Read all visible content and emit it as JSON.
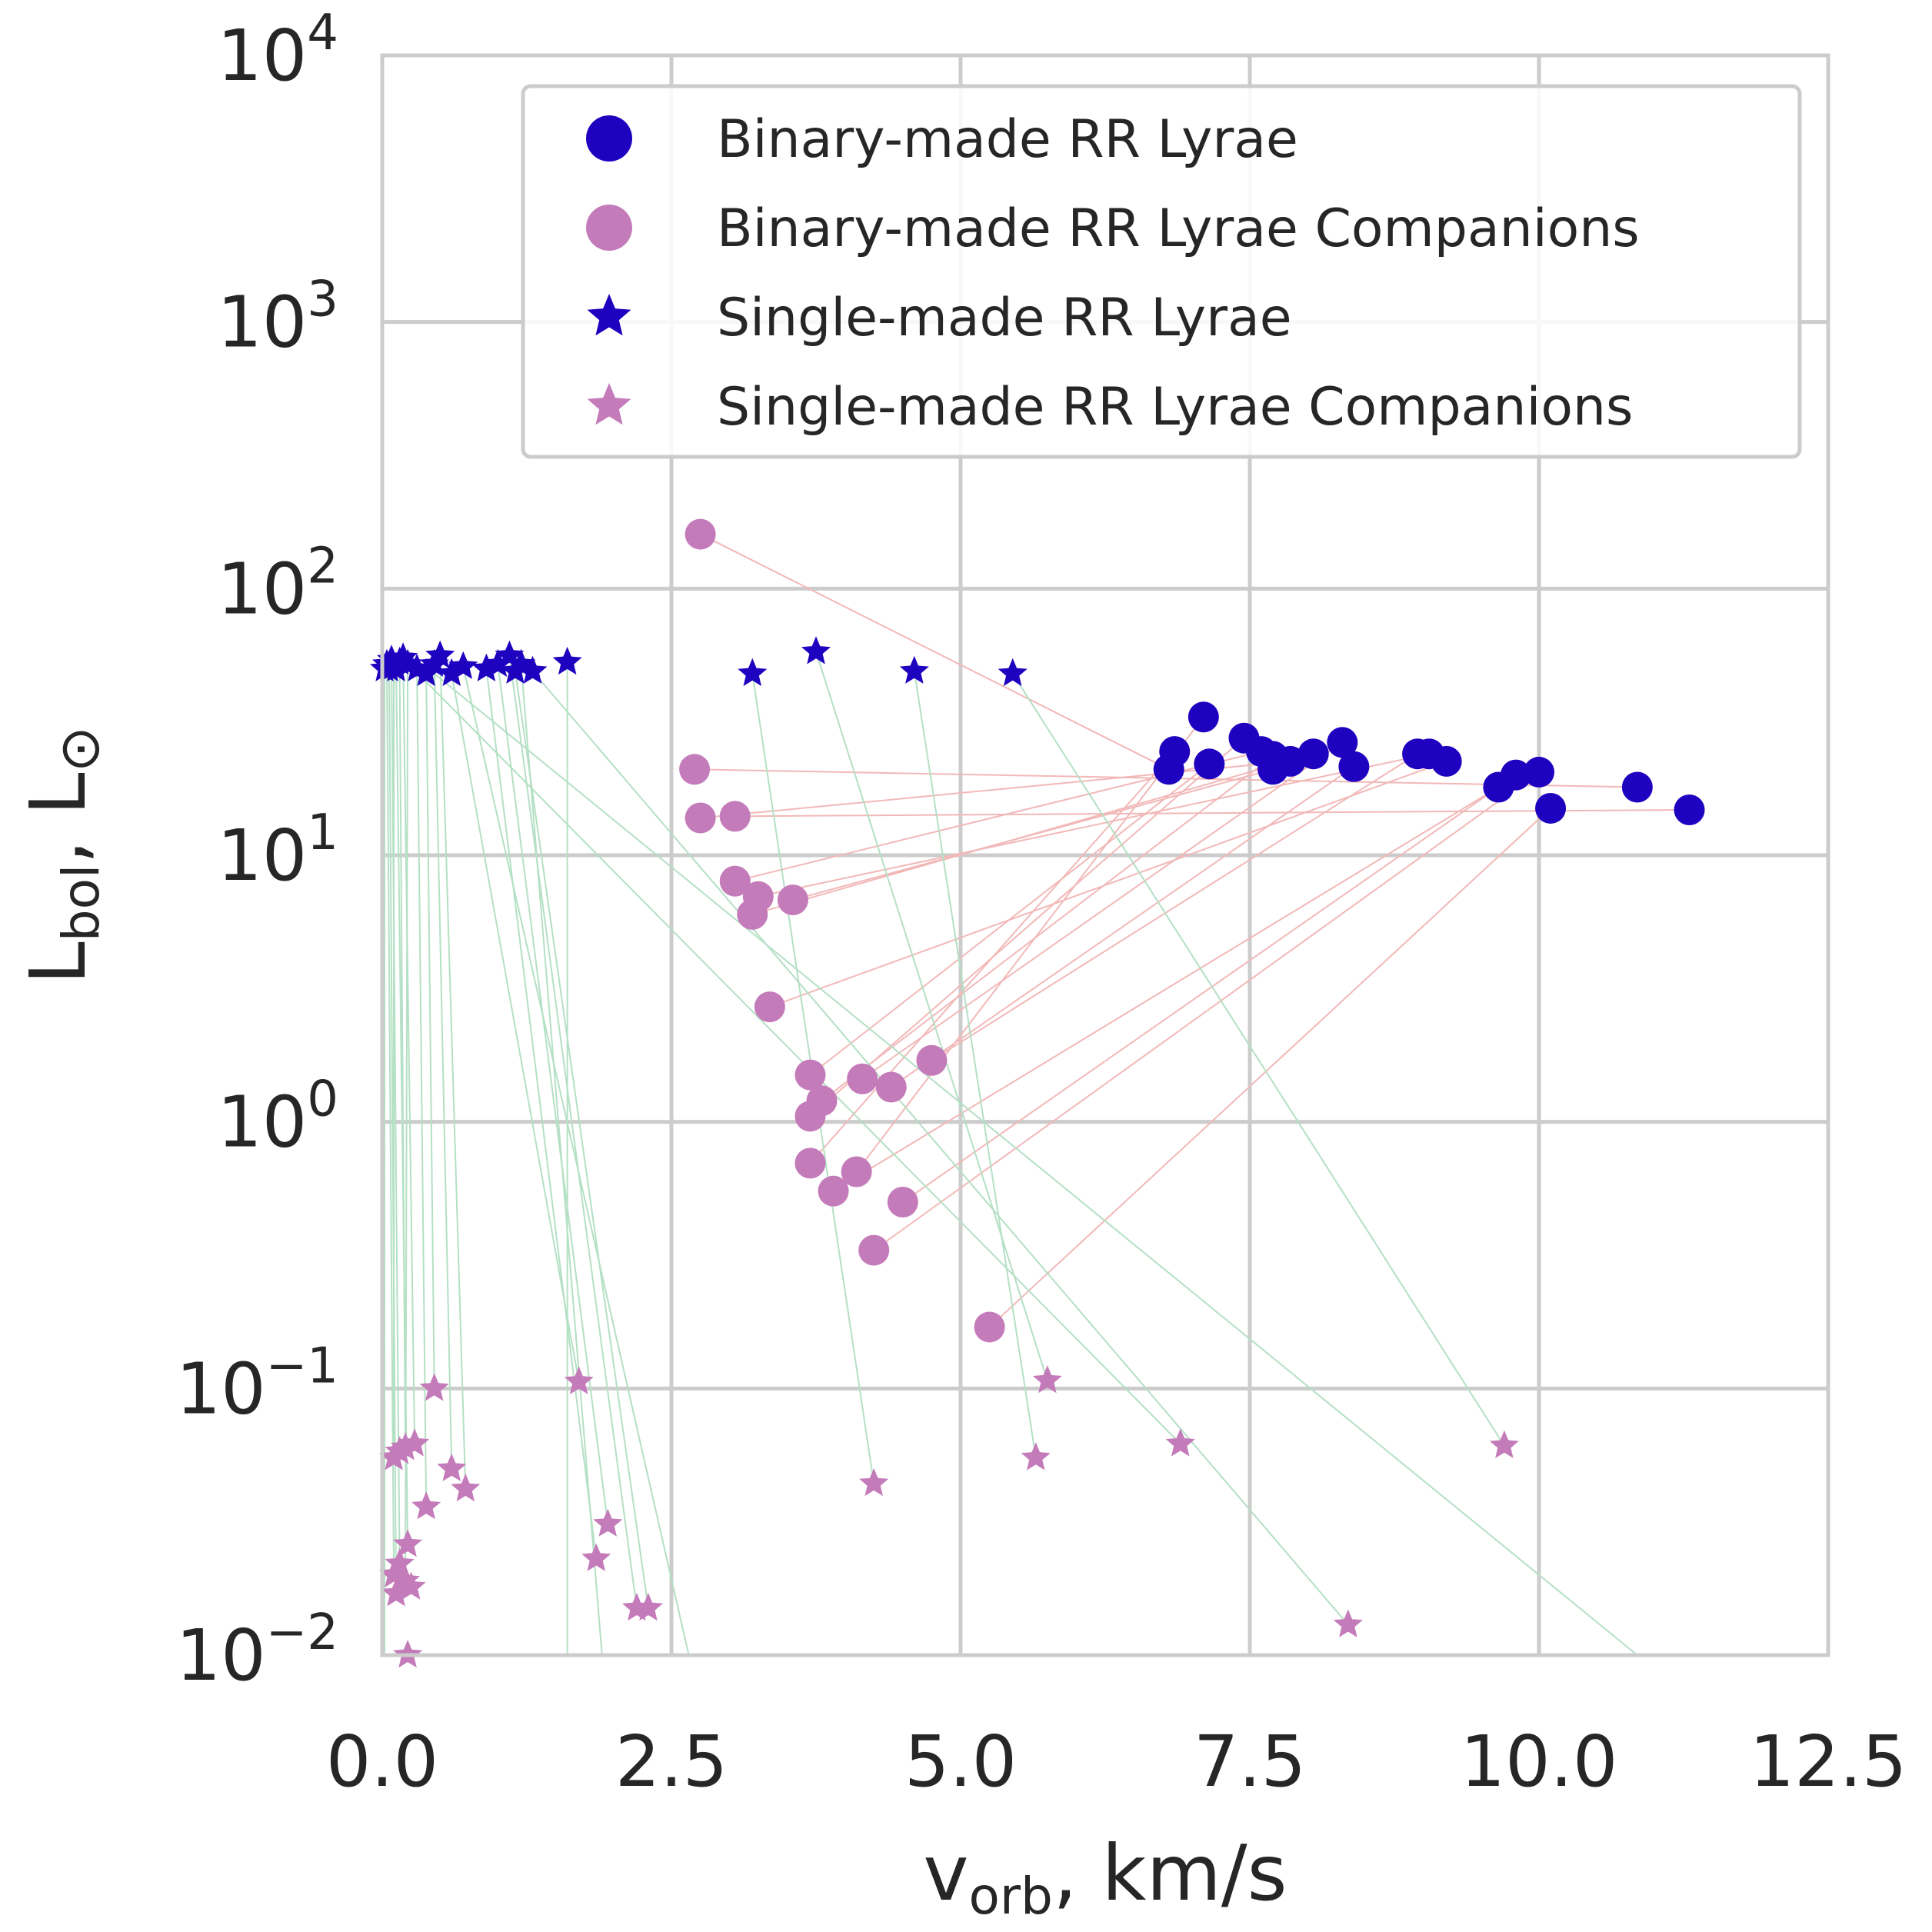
{
  "chart_data": {
    "type": "scatter",
    "xlabel": "v_orb, km/s",
    "xlabel_parts": {
      "main": "v",
      "sub": "orb",
      "rest": ", km/s"
    },
    "ylabel": "L_bol, L_⊙",
    "ylabel_parts": {
      "main": "L",
      "sub": "bol",
      "rest": ", L",
      "symbol": "⊙"
    },
    "xlim": [
      0,
      12.5
    ],
    "ylim": [
      0.01,
      10000
    ],
    "yscale": "log",
    "grid": true,
    "legend_placement": "upper-right",
    "x_ticks": [
      {
        "value": 0,
        "label": "0.0"
      },
      {
        "value": 2.5,
        "label": "2.5"
      },
      {
        "value": 5,
        "label": "5.0"
      },
      {
        "value": 7.5,
        "label": "7.5"
      },
      {
        "value": 10,
        "label": "10.0"
      },
      {
        "value": 12.5,
        "label": "12.5"
      }
    ],
    "y_ticks": [
      {
        "value": 0.01,
        "base": "10",
        "exp": "−2"
      },
      {
        "value": 0.1,
        "base": "10",
        "exp": "−1"
      },
      {
        "value": 1,
        "base": "10",
        "exp": "0"
      },
      {
        "value": 10,
        "base": "10",
        "exp": "1"
      },
      {
        "value": 100,
        "base": "10",
        "exp": "2"
      },
      {
        "value": 1000,
        "base": "10",
        "exp": "3"
      },
      {
        "value": 10000,
        "base": "10",
        "exp": "4"
      }
    ],
    "colors": {
      "rr_lyrae": "#1f02bf",
      "companion": "#c47bba",
      "binary_link": "#f2b8b8",
      "single_link": "#b4e0c4",
      "grid": "#cccccc",
      "text": "#262626"
    },
    "series": [
      {
        "name": "Binary-made RR Lyrae",
        "marker": "circle",
        "color": "#1f02bf",
        "points": [
          [
            6.8,
            21
          ],
          [
            6.85,
            24.5
          ],
          [
            7.1,
            33
          ],
          [
            7.15,
            22
          ],
          [
            7.45,
            27.5
          ],
          [
            7.6,
            24.5
          ],
          [
            7.7,
            21
          ],
          [
            7.7,
            23.5
          ],
          [
            7.85,
            22.5
          ],
          [
            8.05,
            24
          ],
          [
            8.3,
            26.5
          ],
          [
            8.4,
            21.5
          ],
          [
            8.95,
            24
          ],
          [
            9.05,
            24
          ],
          [
            9.2,
            22.5
          ],
          [
            9.65,
            18
          ],
          [
            9.8,
            20
          ],
          [
            10.0,
            20.5
          ],
          [
            10.1,
            15
          ],
          [
            10.85,
            18
          ],
          [
            11.3,
            14.8
          ]
        ]
      },
      {
        "name": "Binary-made RR Lyrae Companions",
        "marker": "circle",
        "color": "#c47bba",
        "points": [
          [
            2.75,
            160
          ],
          [
            2.7,
            21
          ],
          [
            2.75,
            13.8
          ],
          [
            3.05,
            14
          ],
          [
            3.05,
            8
          ],
          [
            3.25,
            7
          ],
          [
            3.2,
            6
          ],
          [
            3.55,
            6.8
          ],
          [
            3.35,
            2.7
          ],
          [
            3.7,
            1.5
          ],
          [
            3.8,
            1.2
          ],
          [
            3.7,
            1.05
          ],
          [
            4.15,
            1.45
          ],
          [
            4.4,
            1.35
          ],
          [
            4.75,
            1.7
          ],
          [
            3.7,
            0.7
          ],
          [
            4.1,
            0.65
          ],
          [
            3.9,
            0.55
          ],
          [
            4.5,
            0.5
          ],
          [
            4.25,
            0.33
          ],
          [
            5.25,
            0.17
          ]
        ]
      },
      {
        "name": "Single-made RR Lyrae",
        "marker": "star",
        "color": "#1f02bf",
        "points": [
          [
            0.02,
            50
          ],
          [
            0.04,
            52
          ],
          [
            0.06,
            50
          ],
          [
            0.08,
            54
          ],
          [
            0.1,
            51
          ],
          [
            0.12,
            50
          ],
          [
            0.15,
            53
          ],
          [
            0.18,
            55
          ],
          [
            0.22,
            52
          ],
          [
            0.3,
            50
          ],
          [
            0.38,
            48
          ],
          [
            0.45,
            52
          ],
          [
            0.5,
            56
          ],
          [
            0.6,
            48
          ],
          [
            0.7,
            51
          ],
          [
            0.9,
            50
          ],
          [
            1.0,
            52
          ],
          [
            1.1,
            56
          ],
          [
            1.15,
            49
          ],
          [
            1.2,
            52
          ],
          [
            1.3,
            49
          ],
          [
            1.6,
            53
          ],
          [
            3.2,
            48
          ],
          [
            3.75,
            58
          ],
          [
            4.6,
            49
          ],
          [
            5.45,
            48
          ]
        ]
      },
      {
        "name": "Single-made RR Lyrae Companions",
        "marker": "star",
        "color": "#c47bba",
        "points": [
          [
            0.2,
            0.06
          ],
          [
            0.28,
            0.062
          ],
          [
            0.1,
            0.055
          ],
          [
            0.15,
            0.058
          ],
          [
            0.45,
            0.1
          ],
          [
            0.38,
            0.036
          ],
          [
            0.6,
            0.05
          ],
          [
            0.72,
            0.042
          ],
          [
            0.22,
            0.026
          ],
          [
            0.15,
            0.022
          ],
          [
            0.1,
            0.02
          ],
          [
            0.2,
            0.019
          ],
          [
            0.25,
            0.018
          ],
          [
            0.12,
            0.017
          ],
          [
            0.22,
            0.01
          ],
          [
            1.7,
            0.106
          ],
          [
            1.85,
            0.023
          ],
          [
            1.95,
            0.031
          ],
          [
            2.2,
            0.015
          ],
          [
            2.3,
            0.015
          ],
          [
            4.25,
            0.044
          ],
          [
            5.65,
            0.055
          ],
          [
            5.75,
            0.107
          ],
          [
            6.9,
            0.062
          ],
          [
            8.35,
            0.013
          ],
          [
            9.7,
            0.061
          ]
        ]
      }
    ],
    "binary_links": [
      [
        0,
        0
      ],
      [
        15,
        1
      ],
      [
        16,
        2
      ],
      [
        9,
        3
      ],
      [
        11,
        4
      ],
      [
        4,
        5
      ],
      [
        7,
        6
      ],
      [
        10,
        7
      ],
      [
        2,
        8
      ],
      [
        6,
        9
      ],
      [
        12,
        10
      ],
      [
        13,
        11
      ],
      [
        14,
        12
      ],
      [
        5,
        13
      ],
      [
        8,
        14
      ],
      [
        17,
        15
      ],
      [
        18,
        16
      ],
      [
        19,
        17
      ],
      [
        20,
        18
      ],
      [
        1,
        19
      ],
      [
        3,
        20
      ]
    ],
    "single_links": [
      {
        "from": [
          0.02,
          50
        ],
        "to": [
          0.02,
          0.01
        ]
      },
      {
        "from": [
          0.04,
          52
        ],
        "to": [
          0.1,
          0.02
        ]
      },
      {
        "from": [
          0.06,
          50
        ],
        "to": [
          0.12,
          0.017
        ]
      },
      {
        "from": [
          0.08,
          54
        ],
        "to": [
          0.15,
          0.022
        ]
      },
      {
        "from": [
          0.1,
          51
        ],
        "to": [
          0.1,
          0.055
        ]
      },
      {
        "from": [
          0.12,
          50
        ],
        "to": [
          0.22,
          0.026
        ]
      },
      {
        "from": [
          0.15,
          53
        ],
        "to": [
          0.2,
          0.06
        ]
      },
      {
        "from": [
          0.18,
          55
        ],
        "to": [
          0.28,
          0.062
        ]
      },
      {
        "from": [
          0.22,
          52
        ],
        "to": [
          0.2,
          0.019
        ]
      },
      {
        "from": [
          0.3,
          50
        ],
        "to": [
          0.38,
          0.036
        ]
      },
      {
        "from": [
          0.38,
          48
        ],
        "to": [
          0.45,
          0.1
        ]
      },
      {
        "from": [
          0.45,
          52
        ],
        "to": [
          0.6,
          0.05
        ]
      },
      {
        "from": [
          0.5,
          56
        ],
        "to": [
          0.72,
          0.042
        ]
      },
      {
        "from": [
          0.6,
          48
        ],
        "to": [
          1.7,
          0.106
        ]
      },
      {
        "from": [
          0.7,
          51
        ],
        "to": [
          2.65,
          0.0093
        ]
      },
      {
        "from": [
          0.9,
          50
        ],
        "to": [
          1.85,
          0.023
        ]
      },
      {
        "from": [
          1.0,
          52
        ],
        "to": [
          1.95,
          0.031
        ]
      },
      {
        "from": [
          1.1,
          56
        ],
        "to": [
          2.2,
          0.015
        ]
      },
      {
        "from": [
          1.15,
          49
        ],
        "to": [
          2.3,
          0.015
        ]
      },
      {
        "from": [
          1.2,
          52
        ],
        "to": [
          1.9,
          0.0093
        ]
      },
      {
        "from": [
          1.3,
          49
        ],
        "to": [
          8.35,
          0.013
        ]
      },
      {
        "from": [
          1.6,
          53
        ],
        "to": [
          1.6,
          0.0093
        ]
      },
      {
        "from": [
          3.2,
          48
        ],
        "to": [
          4.25,
          0.044
        ]
      },
      {
        "from": [
          3.75,
          58
        ],
        "to": [
          5.75,
          0.107
        ]
      },
      {
        "from": [
          4.6,
          49
        ],
        "to": [
          5.65,
          0.055
        ]
      },
      {
        "from": [
          5.45,
          48
        ],
        "to": [
          9.7,
          0.061
        ]
      },
      {
        "from": [
          0.25,
          51
        ],
        "to": [
          6.9,
          0.062
        ]
      },
      {
        "from": [
          0.4,
          50
        ],
        "to": [
          10.85,
          0.0093
        ]
      }
    ]
  }
}
